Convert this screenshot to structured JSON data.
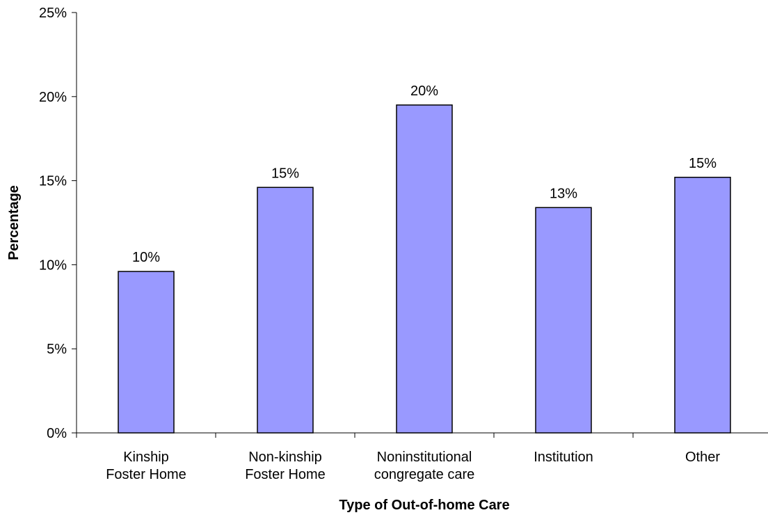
{
  "chart_data": {
    "type": "bar",
    "categories": [
      [
        "Kinship",
        "Foster Home"
      ],
      [
        "Non-kinship",
        "Foster Home"
      ],
      [
        "Noninstitutional",
        "congregate care"
      ],
      [
        "Institution"
      ],
      [
        "Other"
      ]
    ],
    "values": [
      9.6,
      14.6,
      19.5,
      13.4,
      15.2
    ],
    "data_labels": [
      "10%",
      "15%",
      "20%",
      "13%",
      "15%"
    ],
    "y_ticks": [
      "0%",
      "5%",
      "10%",
      "15%",
      "20%",
      "25%"
    ],
    "ylim": [
      0,
      25
    ],
    "xlabel": "Type of Out-of-home Care",
    "ylabel": "Percentage",
    "bar_color": "#9999ff",
    "bar_border_color": "#000000",
    "grid": false,
    "legend": "none"
  }
}
